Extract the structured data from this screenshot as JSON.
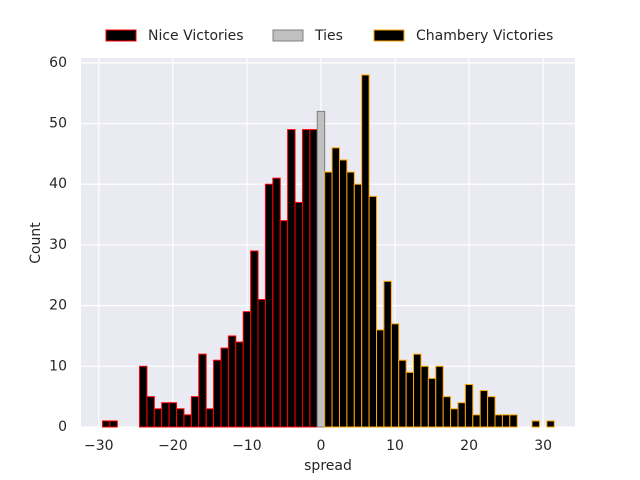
{
  "chart_data": {
    "type": "histogram",
    "xlabel": "spread",
    "ylabel": "Count",
    "xlim": [
      -32.4,
      34.3
    ],
    "ylim": [
      0,
      60.8
    ],
    "xticks": [
      {
        "value": -30,
        "label": "−30"
      },
      {
        "value": -20,
        "label": "−20"
      },
      {
        "value": -10,
        "label": "−10"
      },
      0,
      10,
      20,
      30
    ],
    "yticks": [
      0,
      10,
      20,
      30,
      40,
      50,
      60
    ],
    "grid": true,
    "legend": "top",
    "series": [
      {
        "name": "Nice Victories",
        "color": "#000000",
        "edgecolor": "#ff0000",
        "bins": [
          -30.5,
          -29.5,
          -28.5,
          -27.5,
          -26.5,
          -25.5,
          -24.5,
          -23.5,
          -22.5,
          -21.5,
          -20.5,
          -19.5,
          -18.5,
          -17.5,
          -16.5,
          -15.5,
          -14.5,
          -13.5,
          -12.5,
          -11.5,
          -10.5,
          -9.5,
          -8.5,
          -7.5,
          -6.5,
          -5.5,
          -4.5,
          -3.5,
          -2.5,
          -1.5,
          -0.5
        ],
        "values": [
          0,
          1,
          1,
          0,
          0,
          0,
          10,
          5,
          3,
          4,
          4,
          3,
          2,
          5,
          12,
          3,
          11,
          13,
          15,
          14,
          19,
          29,
          21,
          40,
          41,
          34,
          49,
          37,
          49,
          49
        ]
      },
      {
        "name": "Ties",
        "color": "#c0c0c0",
        "edgecolor": "#808080",
        "bins": [
          -0.5,
          0.5
        ],
        "values": [
          52
        ]
      },
      {
        "name": "Chambery Victories",
        "color": "#000000",
        "edgecolor": "#ffa500",
        "bins": [
          0.5,
          1.5,
          2.5,
          3.5,
          4.5,
          5.5,
          6.5,
          7.5,
          8.5,
          9.5,
          10.5,
          11.5,
          12.5,
          13.5,
          14.5,
          15.5,
          16.5,
          17.5,
          18.5,
          19.5,
          20.5,
          21.5,
          22.5,
          23.5,
          24.5,
          25.5,
          26.5,
          27.5,
          28.5,
          29.5,
          30.5,
          31.5
        ],
        "values": [
          42,
          46,
          44,
          42,
          40,
          58,
          38,
          16,
          24,
          17,
          11,
          9,
          12,
          10,
          8,
          10,
          5,
          3,
          4,
          7,
          2,
          6,
          5,
          2,
          2,
          2,
          0,
          0,
          1,
          0,
          1
        ]
      }
    ]
  }
}
